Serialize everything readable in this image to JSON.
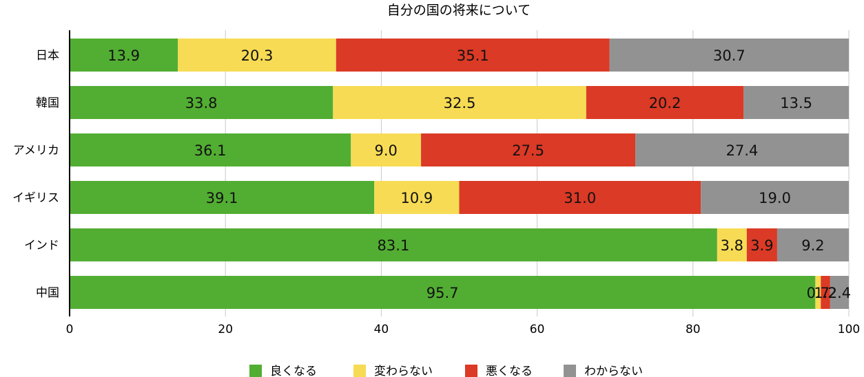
{
  "chart_data": {
    "type": "bar",
    "orientation": "horizontal",
    "stacked": true,
    "title": "自分の国の将来について",
    "categories": [
      "日本",
      "韓国",
      "アメリカ",
      "イギリス",
      "インド",
      "中国"
    ],
    "series": [
      {
        "name": "良くなる",
        "color": "#52ad33",
        "values": [
          13.9,
          33.8,
          36.1,
          39.1,
          83.1,
          95.7
        ],
        "labels": [
          "13.9",
          "33.8",
          "36.1",
          "39.1",
          "83.1",
          "95.7"
        ]
      },
      {
        "name": "変わらない",
        "color": "#f7db54",
        "values": [
          20.3,
          32.5,
          9.0,
          10.9,
          3.8,
          0.7
        ],
        "labels": [
          "20.3",
          "32.5",
          "9.0",
          "10.9",
          "3.8",
          "0.7"
        ]
      },
      {
        "name": "悪くなる",
        "color": "#da3a26",
        "values": [
          35.1,
          20.2,
          27.5,
          31.0,
          3.9,
          1.2
        ],
        "labels": [
          "35.1",
          "20.2",
          "27.5",
          "31.0",
          "3.9",
          "1.2"
        ]
      },
      {
        "name": "わからない",
        "color": "#929292",
        "values": [
          30.7,
          13.5,
          27.4,
          19.0,
          9.2,
          2.4
        ],
        "labels": [
          "30.7",
          "13.5",
          "27.4",
          "19.0",
          "9.2",
          "2.4"
        ]
      }
    ],
    "xlim": [
      0,
      100
    ],
    "xticks": [
      "0",
      "20",
      "40",
      "60",
      "80",
      "100"
    ],
    "grid": "vertical",
    "legend": "bottom"
  }
}
